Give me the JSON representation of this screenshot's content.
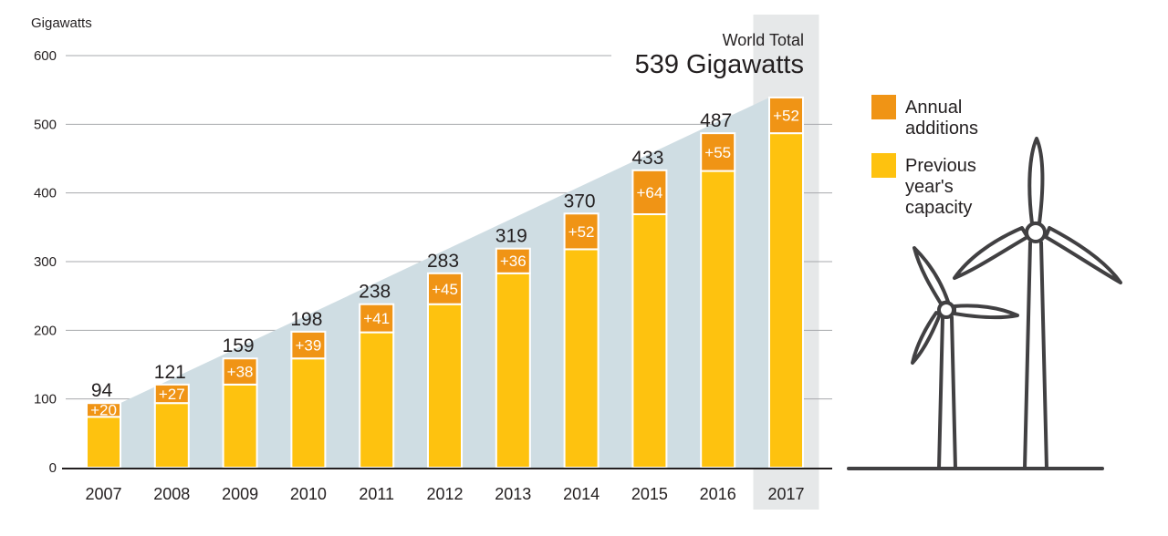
{
  "chart_data": {
    "type": "bar",
    "stacked": true,
    "ylabel": "Gigawatts",
    "ylim": [
      0,
      600
    ],
    "yticks": [
      0,
      100,
      200,
      300,
      400,
      500,
      600
    ],
    "grid": true,
    "categories": [
      "2007",
      "2008",
      "2009",
      "2010",
      "2011",
      "2012",
      "2013",
      "2014",
      "2015",
      "2016",
      "2017"
    ],
    "totals": [
      94,
      121,
      159,
      198,
      238,
      283,
      319,
      370,
      433,
      487,
      539
    ],
    "series": [
      {
        "name": "Previous year's capacity",
        "values": [
          74,
          94,
          121,
          159,
          197,
          238,
          283,
          318,
          369,
          432,
          487
        ],
        "color": "#fec20f"
      },
      {
        "name": "Annual additions",
        "values": [
          20,
          27,
          38,
          39,
          41,
          45,
          36,
          52,
          64,
          55,
          52
        ],
        "color": "#f09415"
      }
    ],
    "addition_labels": [
      "+20",
      "+27",
      "+38",
      "+39",
      "+41",
      "+45",
      "+36",
      "+52",
      "+64",
      "+55",
      "+52"
    ],
    "highlight_category": "2017",
    "world_total": {
      "line1": "World Total",
      "line2": "539 Gigawatts"
    },
    "legend_placement": "right",
    "legend": [
      {
        "label_lines": [
          "Annual",
          "additions"
        ],
        "color": "#f09415"
      },
      {
        "label_lines": [
          "Previous",
          "year's",
          "capacity"
        ],
        "color": "#fec20f"
      }
    ],
    "area_color": "#cfdde3",
    "highlight_color": "#e6e8e9"
  }
}
